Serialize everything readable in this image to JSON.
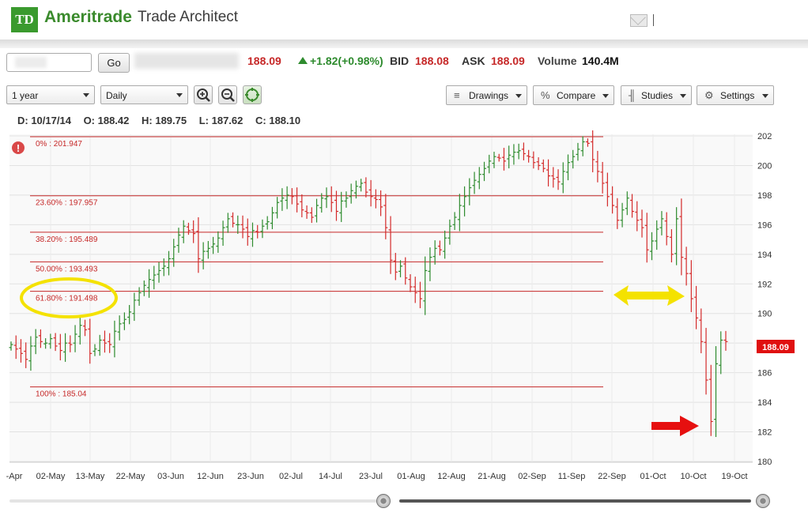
{
  "header": {
    "logo_text": "TD",
    "brand": "Ameritrade",
    "subtitle": "Trade Architect"
  },
  "quote": {
    "go_label": "Go",
    "last": "188.09",
    "change": "+1.82(+0.98%)",
    "bid_label": "BID",
    "bid": "188.08",
    "ask_label": "ASK",
    "ask": "188.09",
    "volume_label": "Volume",
    "volume": "140.4M"
  },
  "controls": {
    "period": "1 year",
    "interval": "Daily",
    "drawings_label": "Drawings",
    "compare_label": "Compare",
    "studies_label": "Studies",
    "settings_label": "Settings"
  },
  "ohlc": {
    "date": "D: 10/17/14",
    "open": "O: 188.42",
    "high": "H: 189.75",
    "low": "L: 187.62",
    "close": "C: 188.10"
  },
  "colors": {
    "up": "#2e8b2e",
    "down": "#d42a2a",
    "fib_line": "#c62828",
    "annotation_yellow": "#f4e200",
    "arrow_red": "#e61010",
    "brand_green": "#3a8a2c"
  },
  "chart_data": {
    "type": "ohlc",
    "ylim": [
      180,
      202
    ],
    "y_ticks": [
      "180",
      "182",
      "184",
      "186",
      "188",
      "190",
      "192",
      "194",
      "196",
      "198",
      "200",
      "202"
    ],
    "x_tick_labels": [
      "-Apr",
      "02-May",
      "13-May",
      "22-May",
      "03-Jun",
      "12-Jun",
      "23-Jun",
      "02-Jul",
      "14-Jul",
      "23-Jul",
      "01-Aug",
      "12-Aug",
      "21-Aug",
      "02-Sep",
      "11-Sep",
      "22-Sep",
      "01-Oct",
      "10-Oct",
      "19-Oct"
    ],
    "last_price_label": "188.09",
    "fibonacci_levels": [
      {
        "label": "0% : 201.947",
        "value": 201.947
      },
      {
        "label": "23.60% : 197.957",
        "value": 197.957
      },
      {
        "label": "38.20% : 195.489",
        "value": 195.489
      },
      {
        "label": "50.00% : 193.493",
        "value": 193.493
      },
      {
        "label": "61.80% : 191.498",
        "value": 191.498
      },
      {
        "label": "100% : 185.04",
        "value": 185.04
      }
    ],
    "closes": [
      187.9,
      187.6,
      187.3,
      186.9,
      187.8,
      188.4,
      188.1,
      188.0,
      188.3,
      187.8,
      187.5,
      188.0,
      187.9,
      188.6,
      189.2,
      188.9,
      187.3,
      187.6,
      188.2,
      188.0,
      187.9,
      188.8,
      189.3,
      189.6,
      190.1,
      190.9,
      191.4,
      191.9,
      192.3,
      192.6,
      192.9,
      193.2,
      193.7,
      194.5,
      195.3,
      195.9,
      195.6,
      195.4,
      193.7,
      194.2,
      194.4,
      194.7,
      195.1,
      195.8,
      196.4,
      196.1,
      196.0,
      195.7,
      195.2,
      195.6,
      195.5,
      195.9,
      196.2,
      196.8,
      197.5,
      197.8,
      198.0,
      197.9,
      197.4,
      197.0,
      196.8,
      196.5,
      197.3,
      197.8,
      197.9,
      197.5,
      196.9,
      197.6,
      197.8,
      198.3,
      198.6,
      198.8,
      198.2,
      197.9,
      197.7,
      197.2,
      195.8,
      193.6,
      192.8,
      193.2,
      192.4,
      191.8,
      191.4,
      191.0,
      192.9,
      193.8,
      194.4,
      194.3,
      195.1,
      195.9,
      196.5,
      197.3,
      197.9,
      198.5,
      199.0,
      199.4,
      199.8,
      200.3,
      200.6,
      200.5,
      200.3,
      200.7,
      200.9,
      201.0,
      200.8,
      200.6,
      200.2,
      200.0,
      199.8,
      199.3,
      199.1,
      198.9,
      199.6,
      200.2,
      200.6,
      201.1,
      201.6,
      201.5,
      200.4,
      199.6,
      198.8,
      197.9,
      197.3,
      196.3,
      197.0,
      197.8,
      196.9,
      196.3,
      195.8,
      194.3,
      194.9,
      195.7,
      196.4,
      195.2,
      194.0,
      196.4,
      193.8,
      192.7,
      191.0,
      189.7,
      188.1,
      185.5,
      182.7,
      186.6,
      188.2,
      188.1
    ],
    "x_label": "",
    "y_label": ""
  }
}
